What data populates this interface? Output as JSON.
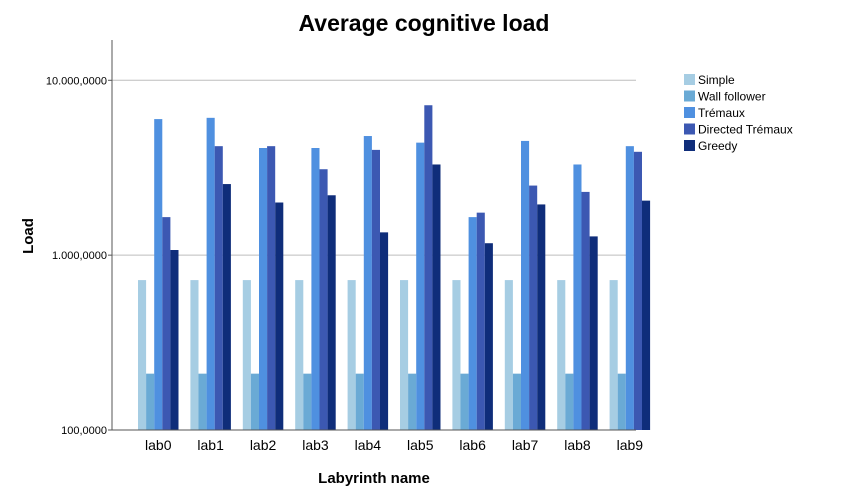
{
  "chart_data": {
    "type": "bar",
    "title": "Average cognitive load",
    "xlabel": "Labyrinth name",
    "ylabel": "Load",
    "yscale": "log",
    "ylim": [
      100000,
      17000000
    ],
    "yticks": [
      {
        "value": 100000,
        "label": "100,0000"
      },
      {
        "value": 1000000,
        "label": "1.000,0000"
      },
      {
        "value": 10000000,
        "label": "10.000,0000"
      }
    ],
    "grid": true,
    "legend_position": "right",
    "categories": [
      "lab0",
      "lab1",
      "lab2",
      "lab3",
      "lab4",
      "lab5",
      "lab6",
      "lab7",
      "lab8",
      "lab9"
    ],
    "series": [
      {
        "name": "Simple",
        "color": "#a6cde3",
        "values": [
          720000,
          720000,
          720000,
          720000,
          720000,
          720000,
          720000,
          720000,
          720000,
          720000
        ]
      },
      {
        "name": "Wall follower",
        "color": "#6aaad5",
        "values": [
          210000,
          210000,
          210000,
          210000,
          210000,
          210000,
          210000,
          210000,
          210000,
          210000
        ]
      },
      {
        "name": "Trémaux",
        "color": "#4f90e0",
        "values": [
          6000000,
          6100000,
          4100000,
          4100000,
          4800000,
          4400000,
          1650000,
          4500000,
          3300000,
          4200000
        ]
      },
      {
        "name": "Directed Trémaux",
        "color": "#3c58b2",
        "values": [
          1650000,
          4200000,
          4200000,
          3100000,
          4000000,
          7200000,
          1750000,
          2500000,
          2300000,
          3900000
        ]
      },
      {
        "name": "Greedy",
        "color": "#0f2d7a",
        "values": [
          1070000,
          2550000,
          2000000,
          2200000,
          1350000,
          3300000,
          1170000,
          1950000,
          1280000,
          2050000
        ]
      }
    ]
  }
}
